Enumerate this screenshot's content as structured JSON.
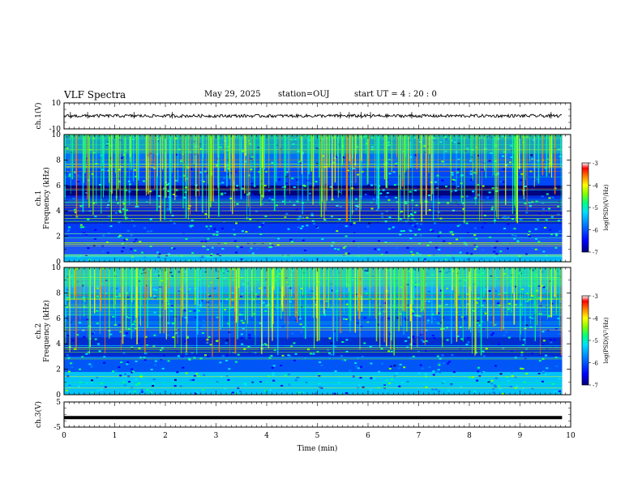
{
  "header": {
    "title": "VLF Spectra",
    "date": "May 29, 2025",
    "station": "station=OUJ",
    "start": "start  UT =   4 : 20 : 0"
  },
  "chart_data": [
    {
      "type": "line",
      "name": "ch1-waveform",
      "ylabel": "ch.1(V)",
      "ylim": [
        -10,
        10
      ],
      "yticks": [
        "10",
        "-10"
      ],
      "x_range_min": [
        0,
        9.83
      ],
      "y_level": 0
    },
    {
      "type": "heatmap",
      "name": "ch1-spectrogram",
      "ylabel": "ch.1\nFrequency  (kHz)",
      "ylim": [
        0,
        10
      ],
      "yticks": [
        "0",
        "2",
        "4",
        "6",
        "8",
        "10"
      ],
      "x_range_min": [
        0,
        9.83
      ],
      "colorbar": {
        "label": "log(PSD)(V²/Hz)",
        "range": [
          -7,
          -3
        ],
        "ticks": [
          "-3",
          "-4",
          "-5",
          "-6",
          "-7"
        ]
      }
    },
    {
      "type": "heatmap",
      "name": "ch2-spectrogram",
      "ylabel": "ch.2\nFrequency  (kHz)",
      "ylim": [
        0,
        10
      ],
      "yticks": [
        "0",
        "2",
        "4",
        "6",
        "8",
        "10"
      ],
      "x_range_min": [
        0,
        9.83
      ],
      "colorbar": {
        "label": "log(PSD)(V²/Hz)",
        "range": [
          -7,
          -3
        ],
        "ticks": [
          "-3",
          "-4",
          "-5",
          "-6",
          "-7"
        ]
      }
    },
    {
      "type": "line",
      "name": "ch3-waveform",
      "ylabel": "ch.3(V)",
      "ylim": [
        -5,
        5
      ],
      "yticks": [
        "5",
        "-5"
      ],
      "x_range_min": [
        0,
        9.83
      ],
      "y_level": -1.2
    }
  ],
  "xaxis": {
    "label": "Time  (min)",
    "range": [
      0,
      10
    ],
    "ticks": [
      "0",
      "1",
      "2",
      "3",
      "4",
      "5",
      "6",
      "7",
      "8",
      "9",
      "10"
    ]
  },
  "colors": {
    "colormap": [
      "#00007a",
      "#0000ff",
      "#0078ff",
      "#00e0ff",
      "#00ff80",
      "#80ff00",
      "#ffff00",
      "#ff8000",
      "#ff0000",
      "#ffffff"
    ]
  }
}
